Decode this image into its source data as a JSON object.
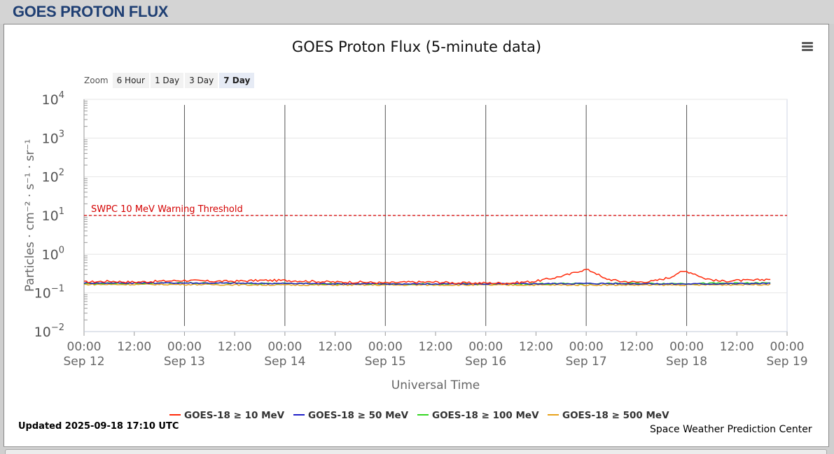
{
  "page": {
    "title": "GOES PROTON FLUX"
  },
  "zoom": {
    "label": "Zoom",
    "buttons": [
      "6 Hour",
      "1 Day",
      "3 Day",
      "7 Day"
    ],
    "active": "7 Day"
  },
  "footer": {
    "updated": "Updated 2025-09-18 17:10 UTC",
    "credit": "Space Weather Prediction Center"
  },
  "chart_data": {
    "type": "line",
    "title": "GOES Proton Flux (5-minute data)",
    "xlabel": "Universal Time",
    "ylabel": "Particles · cm⁻² · s⁻¹ · sr⁻¹",
    "y_scale": "log",
    "ylim": [
      0.01,
      10000
    ],
    "y_ticks": [
      {
        "value": 0.01,
        "base": "10",
        "exp": "−2"
      },
      {
        "value": 0.1,
        "base": "10",
        "exp": "−1"
      },
      {
        "value": 1,
        "base": "10",
        "exp": "0"
      },
      {
        "value": 10,
        "base": "10",
        "exp": "1"
      },
      {
        "value": 100,
        "base": "10",
        "exp": "2"
      },
      {
        "value": 1000,
        "base": "10",
        "exp": "3"
      },
      {
        "value": 10000,
        "base": "10",
        "exp": "4"
      }
    ],
    "xlim": [
      "2025-09-12 00:00",
      "2025-09-19 00:00"
    ],
    "x_ticks": [
      {
        "time": "00:00",
        "date": "Sep 12"
      },
      {
        "time": "12:00",
        "date": ""
      },
      {
        "time": "00:00",
        "date": "Sep 13"
      },
      {
        "time": "12:00",
        "date": ""
      },
      {
        "time": "00:00",
        "date": "Sep 14"
      },
      {
        "time": "12:00",
        "date": ""
      },
      {
        "time": "00:00",
        "date": "Sep 15"
      },
      {
        "time": "12:00",
        "date": ""
      },
      {
        "time": "00:00",
        "date": "Sep 16"
      },
      {
        "time": "12:00",
        "date": ""
      },
      {
        "time": "00:00",
        "date": "Sep 17"
      },
      {
        "time": "12:00",
        "date": ""
      },
      {
        "time": "00:00",
        "date": "Sep 18"
      },
      {
        "time": "12:00",
        "date": ""
      },
      {
        "time": "00:00",
        "date": "Sep 19"
      }
    ],
    "threshold": {
      "label": "SWPC 10 MeV Warning Threshold",
      "value": 10,
      "color": "#d40000"
    },
    "series": [
      {
        "name": "GOES-18 ≥ 10 MeV",
        "color": "#ff2a0a",
        "x_hours": [
          0,
          6,
          12,
          18,
          24,
          30,
          36,
          42,
          48,
          54,
          60,
          66,
          72,
          78,
          84,
          90,
          96,
          102,
          108,
          112,
          116,
          118,
          120,
          122,
          124,
          128,
          132,
          136,
          140,
          142,
          144,
          146,
          148,
          152,
          156,
          160,
          164
        ],
        "values": [
          0.19,
          0.2,
          0.19,
          0.2,
          0.21,
          0.2,
          0.2,
          0.21,
          0.21,
          0.2,
          0.19,
          0.19,
          0.18,
          0.19,
          0.19,
          0.18,
          0.18,
          0.18,
          0.2,
          0.24,
          0.3,
          0.36,
          0.4,
          0.34,
          0.24,
          0.2,
          0.19,
          0.2,
          0.25,
          0.33,
          0.36,
          0.31,
          0.24,
          0.2,
          0.21,
          0.21,
          0.23
        ]
      },
      {
        "name": "GOES-18 ≥ 50 MeV",
        "color": "#1f1fc8",
        "x_hours": [
          0,
          24,
          48,
          72,
          96,
          120,
          144,
          164
        ],
        "values": [
          0.18,
          0.18,
          0.175,
          0.17,
          0.17,
          0.175,
          0.17,
          0.175
        ]
      },
      {
        "name": "GOES-18 ≥ 100 MeV",
        "color": "#33d621",
        "x_hours": [
          0,
          24,
          48,
          72,
          96,
          120,
          144,
          164
        ],
        "values": [
          0.175,
          0.18,
          0.175,
          0.17,
          0.17,
          0.175,
          0.175,
          0.18
        ]
      },
      {
        "name": "GOES-18 ≥ 500 MeV",
        "color": "#e8a21a",
        "x_hours": [
          0,
          24,
          48,
          72,
          96,
          120,
          144,
          164
        ],
        "values": [
          0.165,
          0.165,
          0.16,
          0.16,
          0.16,
          0.16,
          0.16,
          0.165
        ]
      }
    ],
    "grid": true,
    "legend": "bottom-center"
  }
}
